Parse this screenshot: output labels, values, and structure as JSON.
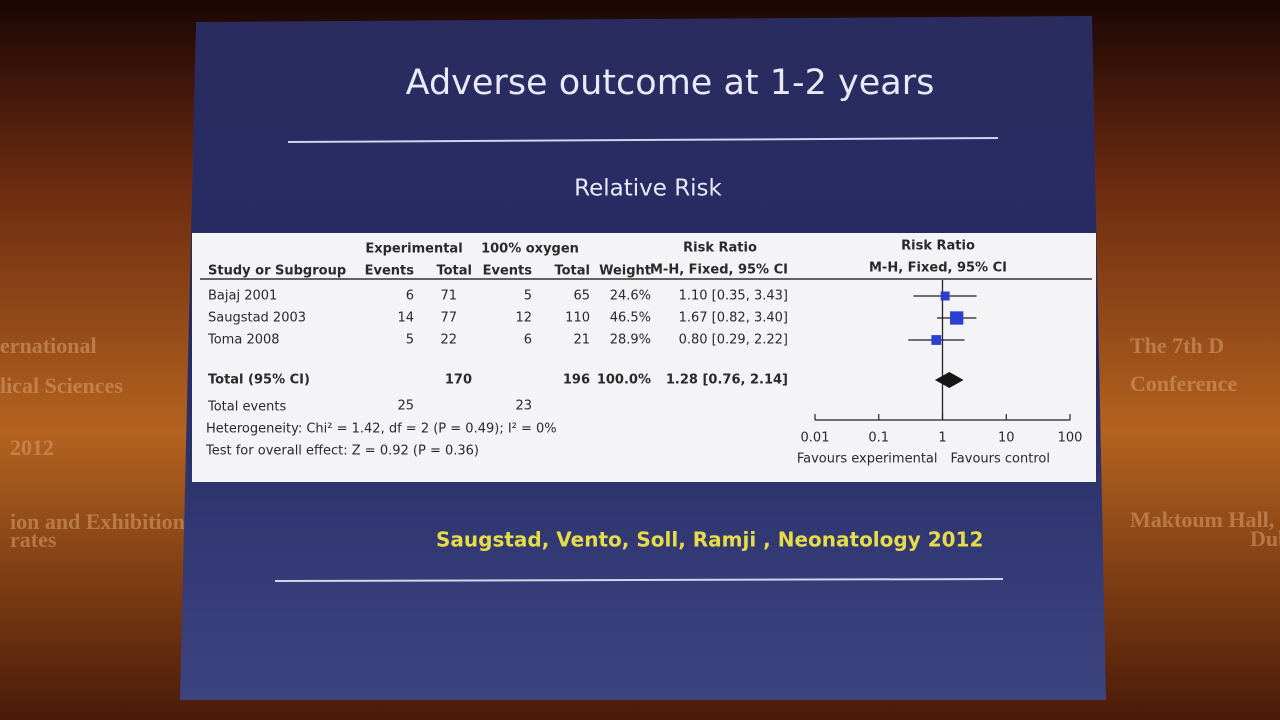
{
  "backdrop": {
    "left": [
      "ernational",
      "lical Sciences",
      "2012",
      "ion and Exhibition Centre",
      "rates"
    ],
    "right": [
      "The 7th D",
      "Conference",
      "Maktoum Hall, Dubai Int",
      "Dub"
    ]
  },
  "slide": {
    "title": "Adverse outcome at 1-2 years",
    "citation": "Saugstad, Vento, Soll, Ramji , Neonatology 2012"
  },
  "chart_data": {
    "type": "forest",
    "title": "Relative Risk",
    "columns": {
      "study": "Study or Subgroup",
      "group1": "Experimental",
      "group2": "100% oxygen",
      "group1_events": "Events",
      "group1_total": "Total",
      "group2_events": "Events",
      "group2_total": "Total",
      "weight": "Weight",
      "ratio": "Risk Ratio",
      "method": "M-H, Fixed, 95% CI"
    },
    "categories": [
      "Bajaj 2001",
      "Saugstad 2003",
      "Toma 2008"
    ],
    "exp_events": [
      6,
      14,
      5
    ],
    "exp_total": [
      71,
      77,
      22
    ],
    "ctl_events": [
      5,
      12,
      6
    ],
    "ctl_total": [
      65,
      110,
      21
    ],
    "weight": [
      24.6,
      46.5,
      28.9
    ],
    "weight_labels": [
      "24.6%",
      "46.5%",
      "28.9%"
    ],
    "values": [
      1.1,
      1.67,
      0.8
    ],
    "ci_low": [
      0.35,
      0.82,
      0.29
    ],
    "ci_high": [
      3.43,
      3.4,
      2.22
    ],
    "value_labels": [
      "1.10 [0.35, 3.43]",
      "1.67 [0.82, 3.40]",
      "0.80 [0.29, 2.22]"
    ],
    "total": {
      "label": "Total (95% CI)",
      "exp_total": 170,
      "ctl_total": 196,
      "weight": 100,
      "weight_label": "100.0%",
      "value": 1.28,
      "ci_low": 0.76,
      "ci_high": 2.14,
      "value_label": "1.28 [0.76, 2.14]"
    },
    "events": {
      "label": "Total events",
      "exp": 25,
      "ctl": 23
    },
    "heterogeneity": "Heterogeneity: Chi² = 1.42, df = 2 (P = 0.49); I² = 0%",
    "overall": "Test for overall effect: Z = 0.92 (P = 0.36)",
    "plot_title": "Risk Ratio",
    "plot_method": "M-H, Fixed, 95% CI",
    "xscale": "log",
    "xlim": [
      0.01,
      100
    ],
    "xticks": [
      0.01,
      0.1,
      1,
      10,
      100
    ],
    "favours_left": "Favours experimental",
    "favours_right": "Favours control",
    "square_color": "#2b3fd0",
    "diamond_color": "#151515"
  }
}
